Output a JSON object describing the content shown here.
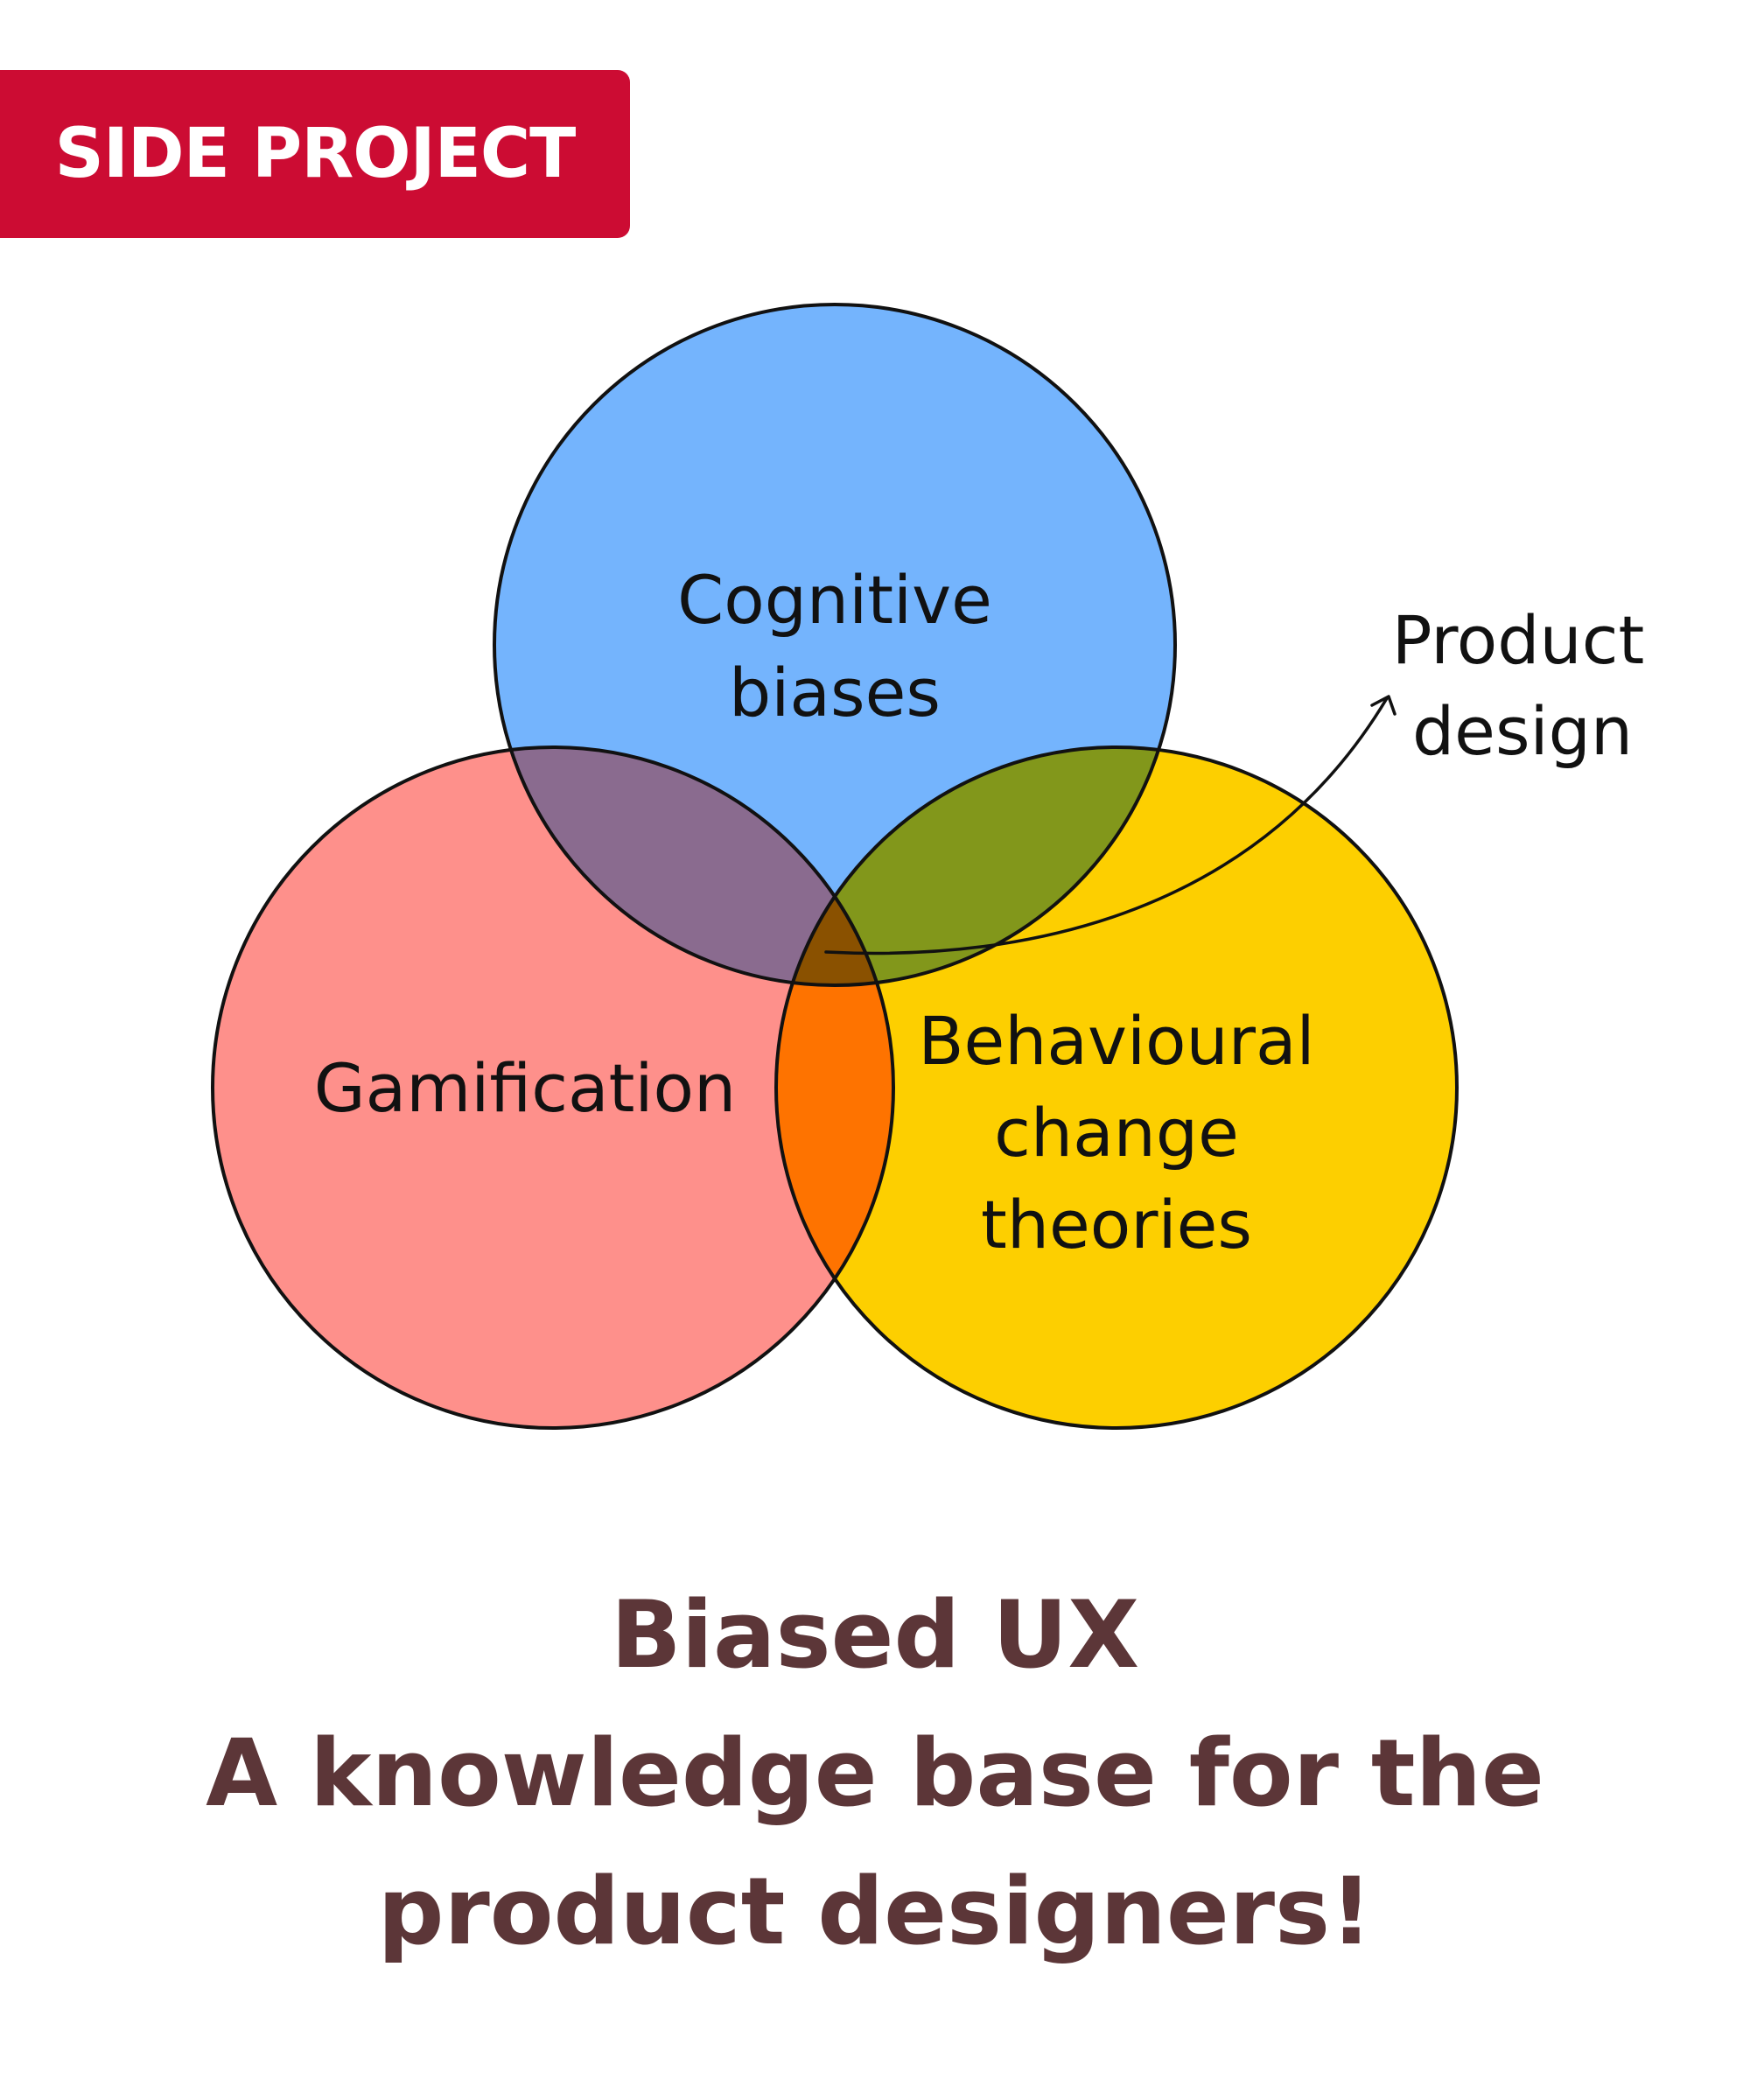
{
  "badge": {
    "label": "SIDE PROJECT"
  },
  "diagram": {
    "sets": [
      {
        "id": "cognitive",
        "lines": [
          "Cognitive",
          "biases"
        ],
        "color": "#74b4fd"
      },
      {
        "id": "gamification",
        "lines": [
          "Gamification"
        ],
        "color": "#fe908b"
      },
      {
        "id": "behavioural",
        "lines": [
          "Behavioural",
          "change",
          "theories"
        ],
        "color": "#fdcf00"
      }
    ],
    "overlaps": {
      "cognitive_gamification": "#8a6b8f",
      "cognitive_behavioural": "#82971b",
      "gamification_behavioural": "#fe7300",
      "center": "#8a5100"
    },
    "annotation": {
      "lines": [
        "Product",
        "design"
      ]
    }
  },
  "caption": {
    "title": "Biased UX",
    "line2": "A knowledge base for the",
    "line3": "product designers!"
  },
  "colors": {
    "badge": "#cc0c33",
    "caption": "#5c3638",
    "outline": "#111111"
  }
}
